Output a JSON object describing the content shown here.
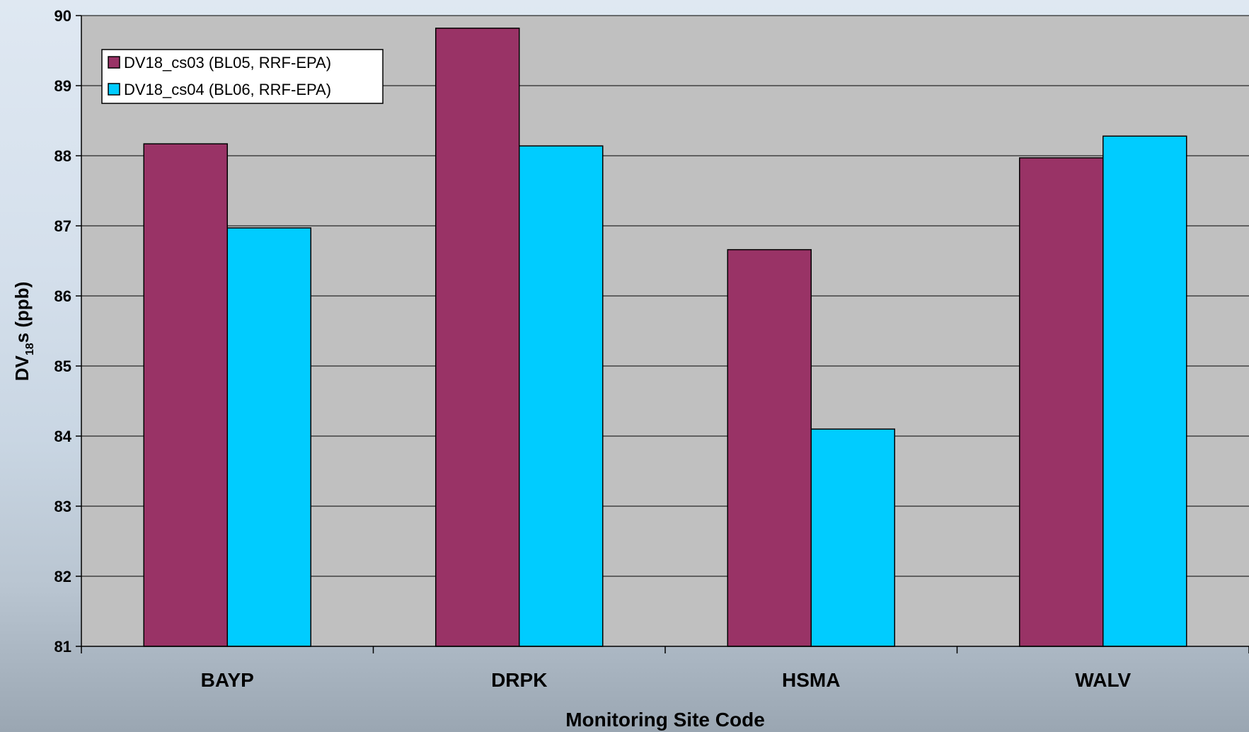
{
  "chart_data": {
    "type": "bar",
    "categories": [
      "BAYP",
      "DRPK",
      "HSMA",
      "WALV"
    ],
    "series": [
      {
        "name": "DV18_cs03 (BL05, RRF-EPA)",
        "color": "#993366",
        "values": [
          88.17,
          89.82,
          86.66,
          87.97
        ]
      },
      {
        "name": "DV18_cs04 (BL06, RRF-EPA)",
        "color": "#00ccff",
        "values": [
          86.97,
          88.14,
          84.1,
          88.28
        ]
      }
    ],
    "ylim": [
      81,
      90
    ],
    "yticks": [
      81,
      82,
      83,
      84,
      85,
      86,
      87,
      88,
      89,
      90
    ],
    "xlabel": "Monitoring Site Code",
    "ylabel": {
      "main": "DV",
      "subscript": "18",
      "suffix": "s (ppb)"
    },
    "grid": true,
    "legend_position": "top-left",
    "plot_background": "#c0c0c0"
  }
}
